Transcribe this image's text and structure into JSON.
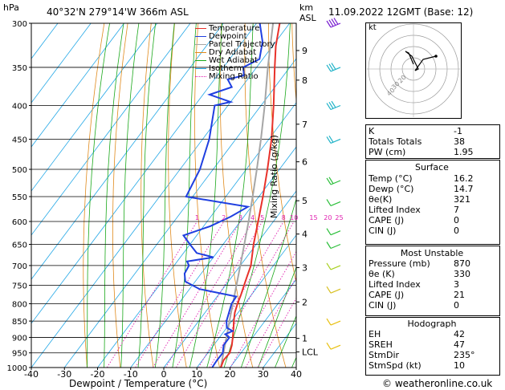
{
  "header": {
    "hpa_label": "hPa",
    "location": "40°32'N  279°14'W  366m  ASL",
    "km_label": "km",
    "asl_label": "ASL",
    "datetime": "11.09.2022  12GMT  (Base: 12)"
  },
  "footer": {
    "credit": "© weatheronline.co.uk"
  },
  "chart_data": {
    "type": "line",
    "title": "",
    "xlabel": "Dewpoint / Temperature (°C)",
    "ylabel": "Mixing Ratio (g/kg)",
    "xlim": [
      -40,
      40
    ],
    "ylim": [
      1000,
      300
    ],
    "pressure_ticks": [
      300,
      350,
      400,
      450,
      500,
      550,
      600,
      650,
      700,
      750,
      800,
      850,
      900,
      950,
      1000
    ],
    "temp_ticks": [
      -40,
      -30,
      -20,
      -10,
      0,
      10,
      20,
      30,
      40
    ],
    "km_ticks": [
      {
        "label": "9",
        "p": 330
      },
      {
        "label": "8",
        "p": 366
      },
      {
        "label": "7",
        "p": 427
      },
      {
        "label": "6",
        "p": 487
      },
      {
        "label": "5",
        "p": 558
      },
      {
        "label": "4",
        "p": 627
      },
      {
        "label": "3",
        "p": 705
      },
      {
        "label": "2",
        "p": 795
      },
      {
        "label": "1",
        "p": 903
      },
      {
        "label": "LCL",
        "p": 947
      }
    ],
    "mixing_ratio_labels": [
      "1",
      "2",
      "3",
      "4",
      "5",
      "8",
      "10",
      "15",
      "20",
      "25"
    ],
    "mixing_ratio_values": [
      1,
      2,
      3,
      4,
      5,
      8,
      10,
      15,
      20,
      25
    ],
    "legend": [
      "Temperature",
      "Dewpoint",
      "Parcel Trajectory",
      "Dry Adiabat",
      "Wet Adiabat",
      "Isotherm",
      "Mixing Ratio"
    ],
    "colors": {
      "temperature": "#e8312a",
      "dewpoint": "#1f3fe0",
      "parcel": "#a6a6a6",
      "dry_adiabat": "#e08a1c",
      "wet_adiabat": "#1aa81a",
      "isotherm": "#22a7e6",
      "mixing_ratio": "#e01fb0"
    },
    "series": [
      {
        "name": "Temperature",
        "points": [
          [
            1000,
            17.2
          ],
          [
            975,
            16.4
          ],
          [
            950,
            16.6
          ],
          [
            925,
            15.5
          ],
          [
            900,
            14.0
          ],
          [
            875,
            12.4
          ],
          [
            850,
            10.6
          ],
          [
            825,
            9.0
          ],
          [
            800,
            7.8
          ],
          [
            775,
            6.8
          ],
          [
            750,
            5.6
          ],
          [
            725,
            4.4
          ],
          [
            700,
            3.2
          ],
          [
            650,
            -0.8
          ],
          [
            600,
            -4.6
          ],
          [
            550,
            -8.8
          ],
          [
            500,
            -13.6
          ],
          [
            450,
            -19.2
          ],
          [
            400,
            -26.2
          ],
          [
            350,
            -34.5
          ],
          [
            325,
            -39.0
          ],
          [
            300,
            -43.0
          ]
        ]
      },
      {
        "name": "Dewpoint",
        "points": [
          [
            1000,
            14.6
          ],
          [
            975,
            14.4
          ],
          [
            950,
            14.5
          ],
          [
            925,
            13.0
          ],
          [
            900,
            13.0
          ],
          [
            890,
            11.0
          ],
          [
            880,
            12.5
          ],
          [
            870,
            10.0
          ],
          [
            850,
            8.4
          ],
          [
            800,
            6.0
          ],
          [
            780,
            5.8
          ],
          [
            760,
            -7.0
          ],
          [
            740,
            -13.0
          ],
          [
            720,
            -15.0
          ],
          [
            700,
            -15.5
          ],
          [
            690,
            -17.0
          ],
          [
            680,
            -10.0
          ],
          [
            670,
            -16.0
          ],
          [
            650,
            -20.0
          ],
          [
            630,
            -24.0
          ],
          [
            610,
            -18.0
          ],
          [
            590,
            -14.0
          ],
          [
            570,
            -11.0
          ],
          [
            550,
            -32.0
          ],
          [
            500,
            -34.0
          ],
          [
            450,
            -38.0
          ],
          [
            400,
            -44.0
          ],
          [
            395,
            -40.0
          ],
          [
            385,
            -48.0
          ],
          [
            375,
            -43.0
          ],
          [
            365,
            -46.0
          ],
          [
            360,
            -42.0
          ],
          [
            350,
            -44.0
          ],
          [
            340,
            -41.0
          ],
          [
            320,
            -44.0
          ],
          [
            300,
            -49.0
          ]
        ]
      },
      {
        "name": "Parcel Trajectory",
        "points": [
          [
            1000,
            17.2
          ],
          [
            950,
            14.7
          ],
          [
            900,
            12.1
          ],
          [
            850,
            9.3
          ],
          [
            800,
            6.4
          ],
          [
            750,
            3.3
          ],
          [
            700,
            0.0
          ],
          [
            650,
            -3.6
          ],
          [
            600,
            -7.5
          ],
          [
            550,
            -11.9
          ],
          [
            500,
            -16.8
          ],
          [
            450,
            -22.4
          ],
          [
            400,
            -28.9
          ],
          [
            350,
            -36.6
          ],
          [
            300,
            -45.0
          ]
        ]
      }
    ]
  },
  "indices": [
    {
      "label": "K",
      "value": "-1"
    },
    {
      "label": "Totals Totals",
      "value": "38"
    },
    {
      "label": "PW (cm)",
      "value": "1.95"
    }
  ],
  "surface": {
    "title": "Surface",
    "rows": [
      {
        "label": "Temp (°C)",
        "value": "16.2"
      },
      {
        "label": "Dewp (°C)",
        "value": "14.7"
      },
      {
        "label": "θe(K)",
        "value": "321"
      },
      {
        "label": "Lifted Index",
        "value": "7"
      },
      {
        "label": "CAPE (J)",
        "value": "0"
      },
      {
        "label": "CIN (J)",
        "value": "0"
      }
    ]
  },
  "unstable": {
    "title": "Most Unstable",
    "rows": [
      {
        "label": "Pressure (mb)",
        "value": "870"
      },
      {
        "label": "θe (K)",
        "value": "330"
      },
      {
        "label": "Lifted Index",
        "value": "3"
      },
      {
        "label": "CAPE (J)",
        "value": "21"
      },
      {
        "label": "CIN (J)",
        "value": "0"
      }
    ]
  },
  "hodograph": {
    "title": "Hodograph",
    "box_label": "kt",
    "ring_labels": [
      "40",
      "30",
      "20"
    ],
    "rows": [
      {
        "label": "EH",
        "value": "42"
      },
      {
        "label": "SREH",
        "value": "47"
      },
      {
        "label": "StmDir",
        "value": "235°"
      },
      {
        "label": "StmSpd (kt)",
        "value": "10"
      }
    ]
  }
}
